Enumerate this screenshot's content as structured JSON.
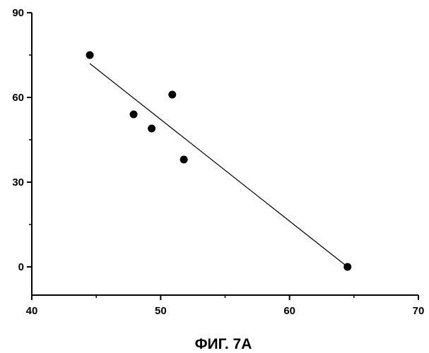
{
  "figure": {
    "caption": "ФИГ. 7A"
  },
  "chart_data": {
    "type": "scatter",
    "title": "",
    "xlabel": "",
    "ylabel": "",
    "xlim": [
      40,
      70
    ],
    "ylim": [
      -10,
      90
    ],
    "x_ticks": [
      40,
      50,
      60,
      70
    ],
    "y_ticks": [
      0,
      30,
      60,
      90
    ],
    "x_tick_labels": [
      "40",
      "50",
      "60",
      "70"
    ],
    "y_tick_labels": [
      "0",
      "30",
      "60",
      "90"
    ],
    "grid": false,
    "legend": "none",
    "points": [
      {
        "x": 44.5,
        "y": 75
      },
      {
        "x": 47.9,
        "y": 54
      },
      {
        "x": 49.3,
        "y": 49
      },
      {
        "x": 50.9,
        "y": 61
      },
      {
        "x": 51.8,
        "y": 38
      },
      {
        "x": 64.5,
        "y": 0
      }
    ],
    "trendline": {
      "type": "linear",
      "x": [
        44.5,
        64.5
      ],
      "y": [
        72,
        0
      ]
    },
    "colors": {
      "points": "#000000",
      "line": "#000000",
      "axes": "#000000"
    }
  }
}
